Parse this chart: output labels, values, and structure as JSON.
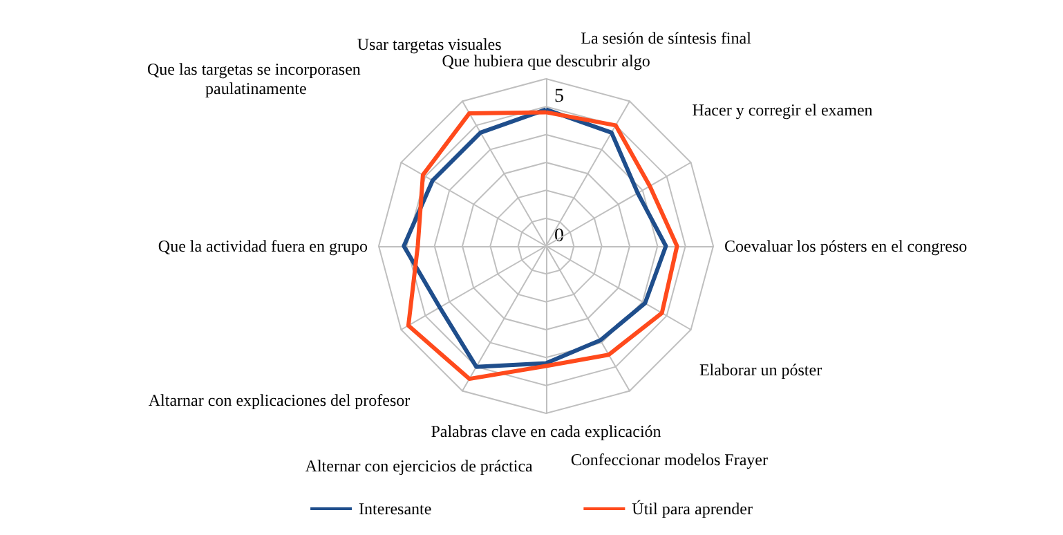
{
  "chart_data": {
    "type": "radar",
    "categories": [
      "Que hubiera que descubrir algo",
      "La sesión de síntesis final",
      "Hacer y corregir el examen",
      "Coevaluar los pósters en el congreso",
      "Elaborar un póster",
      "Confeccionar modelos Frayer",
      "Palabras clave en cada explicación",
      "Alternar con ejercicios de práctica",
      "Altarnar con explicaciones del profesor",
      "Que la actividad fuera en grupo",
      "Que las targetas se incorporasen paulatinamente",
      "Usar targetas visuales"
    ],
    "series": [
      {
        "name": "Interesante",
        "color": "#1f4e8c",
        "values": [
          4.9,
          4.7,
          3.8,
          4.3,
          4.1,
          3.9,
          4.2,
          5.0,
          4.4,
          5.1,
          4.7,
          4.7
        ]
      },
      {
        "name": "Útil para aprender",
        "color": "#ff4a1c",
        "values": [
          4.8,
          5.0,
          4.3,
          4.7,
          4.8,
          4.5,
          4.3,
          5.5,
          5.7,
          4.6,
          5.1,
          5.5
        ]
      }
    ],
    "ylim": [
      0,
      6
    ],
    "yticks": [
      0,
      5
    ],
    "legend": "bottom"
  }
}
